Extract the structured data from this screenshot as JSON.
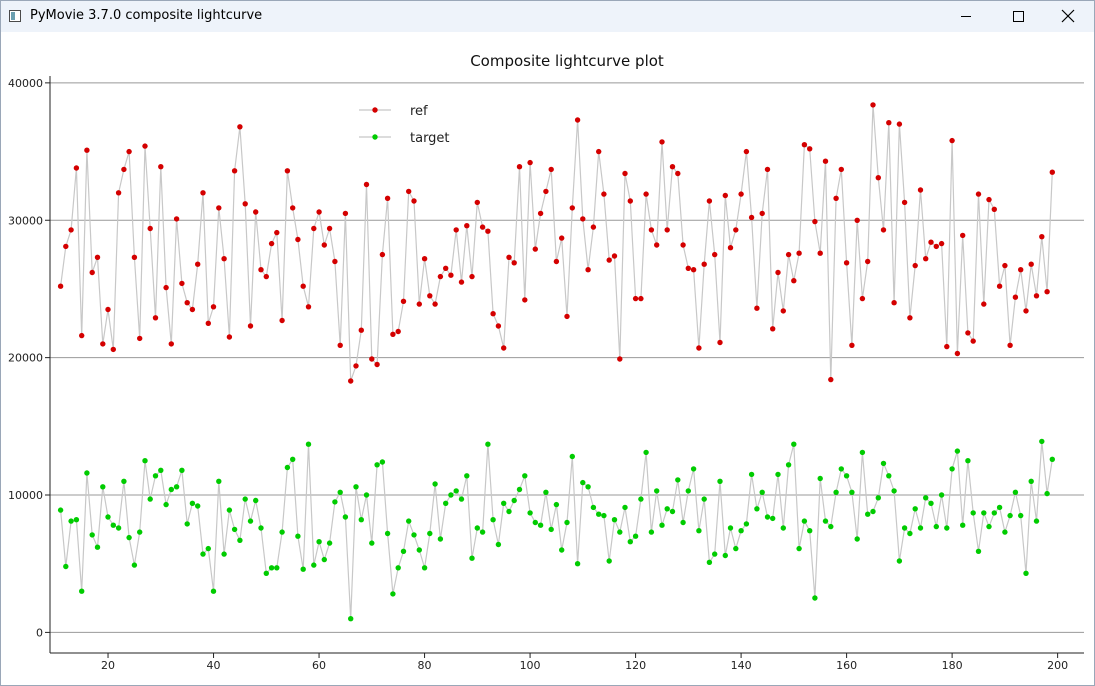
{
  "window": {
    "title": "PyMovie 3.7.0 composite lightcurve",
    "icon": "app-window-icon",
    "buttons": [
      "minimize-icon",
      "maximize-icon",
      "close-icon"
    ]
  },
  "chart_data": {
    "type": "scatter",
    "title": "Composite lightcurve plot",
    "xlabel": "",
    "ylabel": "",
    "xlim": [
      9,
      205
    ],
    "ylim": [
      -1500,
      40500
    ],
    "xticks": [
      20,
      40,
      60,
      80,
      100,
      120,
      140,
      160,
      180,
      200
    ],
    "yticks": [
      0,
      10000,
      20000,
      30000,
      40000
    ],
    "grid": "horizontal",
    "legend_position": "top-left",
    "x": [
      11,
      12,
      13,
      14,
      15,
      16,
      17,
      18,
      19,
      20,
      21,
      22,
      23,
      24,
      25,
      26,
      27,
      28,
      29,
      30,
      31,
      32,
      33,
      34,
      35,
      36,
      37,
      38,
      39,
      40,
      41,
      42,
      43,
      44,
      45,
      46,
      47,
      48,
      49,
      50,
      51,
      52,
      53,
      54,
      55,
      56,
      57,
      58,
      59,
      60,
      61,
      62,
      63,
      64,
      65,
      66,
      67,
      68,
      69,
      70,
      71,
      72,
      73,
      74,
      75,
      76,
      77,
      78,
      79,
      80,
      81,
      82,
      83,
      84,
      85,
      86,
      87,
      88,
      89,
      90,
      91,
      92,
      93,
      94,
      95,
      96,
      97,
      98,
      99,
      100,
      101,
      102,
      103,
      104,
      105,
      106,
      107,
      108,
      109,
      110,
      111,
      112,
      113,
      114,
      115,
      116,
      117,
      118,
      119,
      120,
      121,
      122,
      123,
      124,
      125,
      126,
      127,
      128,
      129,
      130,
      131,
      132,
      133,
      134,
      135,
      136,
      137,
      138,
      139,
      140,
      141,
      142,
      143,
      144,
      145,
      146,
      147,
      148,
      149,
      150,
      151,
      152,
      153,
      154,
      155,
      156,
      157,
      158,
      159,
      160,
      161,
      162,
      163,
      164,
      165,
      166,
      167,
      168,
      169,
      170,
      171,
      172,
      173,
      174,
      175,
      176,
      177,
      178,
      179,
      180,
      181,
      182,
      183,
      184,
      185,
      186,
      187,
      188,
      189,
      190,
      191,
      192,
      193,
      194,
      195,
      196,
      197,
      198,
      199
    ],
    "series": [
      {
        "name": "ref",
        "color": "#d40000",
        "values": [
          25200,
          28100,
          29300,
          33800,
          21600,
          35100,
          26200,
          27300,
          21000,
          23500,
          20600,
          32000,
          33700,
          35000,
          27300,
          21400,
          35400,
          29400,
          22900,
          33900,
          25100,
          21000,
          30100,
          25400,
          24000,
          23500,
          26800,
          32000,
          22500,
          23700,
          30900,
          27200,
          21500,
          33600,
          36800,
          31200,
          22300,
          30600,
          26400,
          25900,
          28300,
          29100,
          22700,
          33600,
          30900,
          28600,
          25200,
          23700,
          29400,
          30600,
          28200,
          29400,
          27000,
          20900,
          30500,
          18300,
          19400,
          22000,
          32600,
          19900,
          19500,
          27500,
          31600,
          21700,
          21900,
          24100,
          32100,
          31400,
          23900,
          27200,
          24500,
          23900,
          25900,
          26500,
          26000,
          29300,
          25500,
          29600,
          25900,
          31300,
          29500,
          29200,
          23200,
          22300,
          20700,
          27300,
          26900,
          33900,
          24200,
          34200,
          27900,
          30500,
          32100,
          33700,
          27000,
          28700,
          23000,
          30900,
          37300,
          30100,
          26400,
          29500,
          35000,
          31900,
          27100,
          27400,
          19900,
          33400,
          31400,
          24300,
          24300,
          31900,
          29300,
          28200,
          35700,
          29300,
          33900,
          33400,
          28200,
          26500,
          26400,
          20700,
          26800,
          31400,
          27500,
          21100,
          31800,
          28000,
          29300,
          31900,
          35000,
          30200,
          23600,
          30500,
          33700,
          22100,
          26200,
          23400,
          27500,
          25600,
          27600,
          35500,
          35200,
          29900,
          27600,
          34300,
          18400,
          31600,
          33700,
          26900,
          20900,
          30000,
          24300,
          27000,
          38400,
          33100,
          29300,
          37100,
          24000,
          37000,
          31300,
          22900,
          26700,
          32200,
          27200,
          28400,
          28100,
          28300,
          20800,
          35800,
          20300,
          28900,
          21800,
          21200,
          31900,
          23900,
          31500,
          30800,
          25200,
          26700,
          20900,
          24400,
          26400,
          23400,
          26800,
          24500,
          28800,
          24800,
          33500
        ]
      },
      {
        "name": "target",
        "color": "#00cc00",
        "values": [
          8900,
          4800,
          8100,
          8200,
          3000,
          11600,
          7100,
          6200,
          10600,
          8400,
          7800,
          7600,
          11000,
          6900,
          4900,
          7300,
          12500,
          9700,
          11400,
          11800,
          9300,
          10400,
          10600,
          11800,
          7900,
          9400,
          9200,
          5700,
          6100,
          3000,
          11000,
          5700,
          8900,
          7500,
          6700,
          9700,
          8100,
          9600,
          7600,
          4300,
          4700,
          4700,
          7300,
          12000,
          12600,
          7000,
          4600,
          13700,
          4900,
          6600,
          5300,
          6500,
          9500,
          10200,
          8400,
          1000,
          10600,
          8200,
          10000,
          6500,
          12200,
          12400,
          7200,
          2800,
          4700,
          5900,
          8100,
          7100,
          6000,
          4700,
          7200,
          10800,
          6800,
          9400,
          10000,
          10300,
          9700,
          11400,
          5400,
          7600,
          7300,
          13700,
          8200,
          6400,
          9400,
          8800,
          9600,
          10400,
          11400,
          8700,
          8000,
          7800,
          10200,
          7500,
          9300,
          6000,
          8000,
          12800,
          5000,
          10900,
          10600,
          9100,
          8600,
          8500,
          5200,
          8200,
          7300,
          9100,
          6600,
          7000,
          9700,
          13100,
          7300,
          10300,
          7800,
          9000,
          8800,
          11100,
          8000,
          10300,
          11900,
          7400,
          9700,
          5100,
          5700,
          11000,
          5600,
          7600,
          6100,
          7400,
          7900,
          11500,
          9000,
          10200,
          8400,
          8300,
          11500,
          7600,
          12200,
          13700,
          6100,
          8100,
          7400,
          2500,
          11200,
          8100,
          7700,
          10200,
          11900,
          11400,
          10200,
          6800,
          13100,
          8600,
          8800,
          9800,
          12300,
          11400,
          10300,
          5200,
          7600,
          7200,
          9000,
          7600,
          9800,
          9400,
          7700,
          10000,
          7600,
          11900,
          13200,
          7800,
          12500,
          8700,
          5900,
          8700,
          7700,
          8700,
          9100,
          7300,
          8500,
          10200,
          8500,
          4300,
          11000,
          8100,
          13900,
          10100,
          12600
        ]
      }
    ]
  }
}
